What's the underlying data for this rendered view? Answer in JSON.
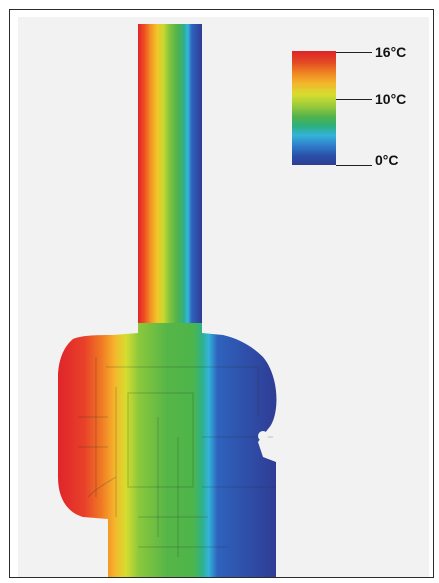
{
  "legend": {
    "max_label": "16°C",
    "mid_label": "10°C",
    "min_label": "0°C"
  },
  "colors": {
    "hot": "#e0242a",
    "warm": "#f3b42a",
    "mid": "#4fb24c",
    "cool": "#34b3d9",
    "cold": "#2f3c94"
  }
}
